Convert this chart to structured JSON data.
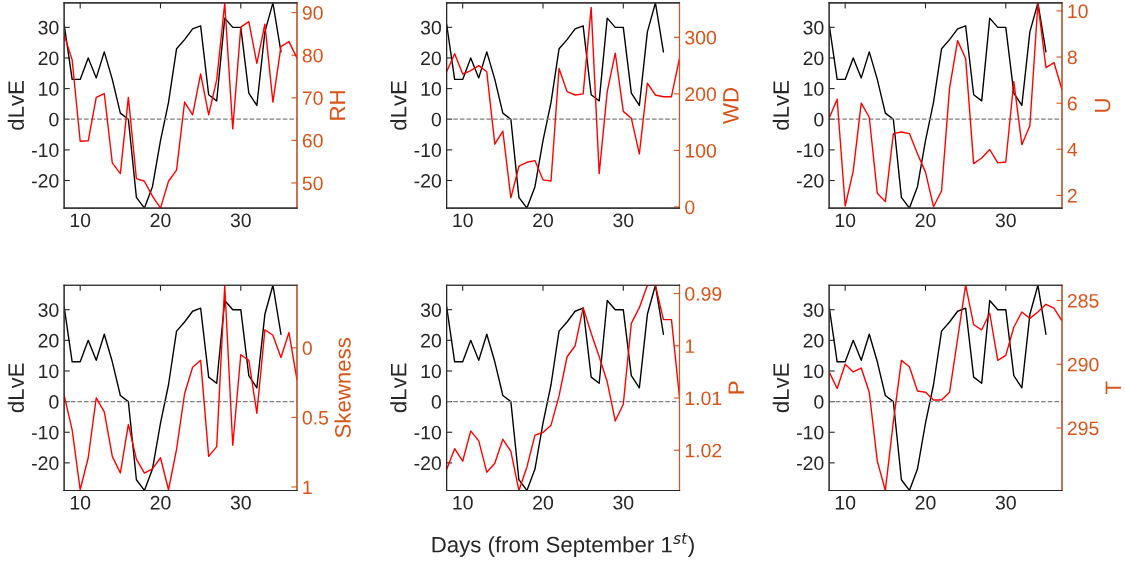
{
  "chart_data": [
    {
      "type": "line",
      "ylabel": "dLvE",
      "y2label": "RH",
      "xlim": [
        8,
        37
      ],
      "xticks": [
        10,
        20,
        30
      ],
      "ylim": [
        -29,
        38
      ],
      "yticks": [
        -20,
        -10,
        0,
        10,
        20,
        30
      ],
      "y2lim": [
        44.1,
        92.3
      ],
      "y2ticks": [
        50,
        60,
        70,
        80,
        90
      ],
      "ref_lines": [
        {
          "axis": "y",
          "value": 0,
          "color": "#808080",
          "line_style": "dashed"
        }
      ],
      "series": [
        {
          "color": "#000000",
          "x": [
            8,
            9,
            10,
            11,
            12,
            13,
            14,
            15,
            16,
            17,
            18,
            19,
            20,
            21,
            22,
            23,
            24,
            25,
            26,
            27,
            28,
            29,
            30,
            31,
            32,
            33,
            34,
            35
          ],
          "values": [
            31,
            13,
            13,
            20,
            13.5,
            22,
            13,
            2,
            0,
            -25.5,
            -29,
            -22,
            -7,
            5.5,
            23,
            26,
            29.5,
            30.5,
            8,
            6,
            33,
            30,
            30,
            8.5,
            4.5,
            28.5,
            38,
            22
          ]
        },
        {
          "color": "#ff0000",
          "axis": "y2",
          "x": [
            8,
            9,
            10,
            11,
            12,
            13,
            14,
            15,
            16,
            17,
            18,
            19,
            20,
            21,
            22,
            23,
            24,
            25,
            26,
            27,
            28,
            29,
            30,
            31,
            32,
            33,
            34,
            35,
            36,
            37
          ],
          "values": [
            84.8,
            78.9,
            59.8,
            59.9,
            70.1,
            71.0,
            54.7,
            52.2,
            70.1,
            51.0,
            50.4,
            46.9,
            44.1,
            50.4,
            53.0,
            69.0,
            66.0,
            75.6,
            66.0,
            74.2,
            92.2,
            62.7,
            86.6,
            87.9,
            78.1,
            87.3,
            69.0,
            82.0,
            83.2,
            79.3
          ]
        }
      ]
    },
    {
      "type": "line",
      "ylabel": "dLvE",
      "y2label": "WD",
      "xlim": [
        8,
        37
      ],
      "xticks": [
        10,
        20,
        30
      ],
      "ylim": [
        -29,
        38
      ],
      "yticks": [
        -20,
        -10,
        0,
        10,
        20,
        30
      ],
      "y2lim": [
        -2,
        361
      ],
      "y2ticks": [
        0,
        100,
        200,
        300
      ],
      "ref_lines": [
        {
          "axis": "y",
          "value": 0,
          "color": "#808080",
          "line_style": "dashed"
        }
      ],
      "series": [
        {
          "color": "#000000",
          "x": [
            8,
            9,
            10,
            11,
            12,
            13,
            14,
            15,
            16,
            17,
            18,
            19,
            20,
            21,
            22,
            23,
            24,
            25,
            26,
            27,
            28,
            29,
            30,
            31,
            32,
            33,
            34,
            35
          ],
          "values": [
            31,
            13,
            13,
            20,
            13.5,
            22,
            13,
            2,
            0,
            -25.5,
            -29,
            -22,
            -7,
            5.5,
            23,
            26,
            29.5,
            30.5,
            8,
            6,
            33,
            30,
            30,
            8.5,
            4.5,
            28.5,
            38,
            22
          ]
        },
        {
          "color": "#ff0000",
          "axis": "y2",
          "x": [
            8,
            9,
            10,
            11,
            12,
            13,
            14,
            15,
            16,
            17,
            18,
            19,
            20,
            21,
            22,
            23,
            24,
            25,
            26,
            27,
            28,
            29,
            30,
            31,
            32,
            33,
            34,
            35,
            36,
            37
          ],
          "values": [
            239,
            271,
            235,
            241,
            250,
            239,
            111,
            134,
            16,
            72,
            79,
            82,
            48,
            46,
            245,
            204,
            198,
            200,
            353,
            59,
            204,
            272,
            169,
            157,
            94,
            219,
            198,
            195,
            195,
            263
          ]
        }
      ]
    },
    {
      "type": "line",
      "ylabel": "dLvE",
      "y2label": "U",
      "xlim": [
        8,
        37
      ],
      "xticks": [
        10,
        20,
        30
      ],
      "ylim": [
        -29,
        38
      ],
      "yticks": [
        -20,
        -10,
        0,
        10,
        20,
        30
      ],
      "y2lim": [
        1.45,
        10.35
      ],
      "y2ticks": [
        2,
        4,
        6,
        8,
        10
      ],
      "ref_lines": [
        {
          "axis": "y",
          "value": 0,
          "color": "#808080",
          "line_style": "dashed"
        }
      ],
      "series": [
        {
          "color": "#000000",
          "x": [
            8,
            9,
            10,
            11,
            12,
            13,
            14,
            15,
            16,
            17,
            18,
            19,
            20,
            21,
            22,
            23,
            24,
            25,
            26,
            27,
            28,
            29,
            30,
            31,
            32,
            33,
            34,
            35
          ],
          "values": [
            31,
            13,
            13,
            20,
            13.5,
            22,
            13,
            2,
            0,
            -25.5,
            -29,
            -22,
            -7,
            5.5,
            23,
            26,
            29.5,
            30.5,
            8,
            6,
            33,
            30,
            30,
            8.5,
            4.5,
            28.5,
            38,
            22
          ]
        },
        {
          "color": "#ff0000",
          "axis": "y2",
          "x": [
            8,
            9,
            10,
            11,
            12,
            13,
            14,
            15,
            16,
            17,
            18,
            19,
            20,
            21,
            22,
            23,
            24,
            25,
            26,
            27,
            28,
            29,
            30,
            31,
            32,
            33,
            34,
            35,
            36,
            37
          ],
          "values": [
            5.35,
            6.17,
            1.54,
            3.05,
            6.0,
            5.39,
            2.09,
            1.73,
            4.68,
            4.75,
            4.68,
            3.81,
            3.01,
            1.51,
            2.19,
            6.65,
            8.71,
            7.94,
            3.38,
            3.62,
            3.99,
            3.41,
            3.45,
            6.94,
            4.2,
            5.02,
            10.32,
            7.54,
            7.76,
            6.58
          ]
        }
      ]
    },
    {
      "type": "line",
      "ylabel": "dLvE",
      "y2label": "Skewness",
      "xlim": [
        8,
        37
      ],
      "xticks": [
        10,
        20,
        30
      ],
      "ylim": [
        -29,
        38
      ],
      "yticks": [
        -20,
        -10,
        0,
        10,
        20,
        30
      ],
      "y2lim": [
        1.025,
        -0.45
      ],
      "y2ticks": [
        0,
        0.5,
        1
      ],
      "ref_lines": [
        {
          "axis": "y",
          "value": 0,
          "color": "#808080",
          "line_style": "dashed"
        }
      ],
      "series": [
        {
          "color": "#000000",
          "x": [
            8,
            9,
            10,
            11,
            12,
            13,
            14,
            15,
            16,
            17,
            18,
            19,
            20,
            21,
            22,
            23,
            24,
            25,
            26,
            27,
            28,
            29,
            30,
            31,
            32,
            33,
            34,
            35
          ],
          "values": [
            31,
            13,
            13,
            20,
            13.5,
            22,
            13,
            2,
            0,
            -25.5,
            -29,
            -22,
            -7,
            5.5,
            23,
            26,
            29.5,
            30.5,
            8,
            6,
            33,
            30,
            30,
            8.5,
            4.5,
            28.5,
            38,
            22
          ]
        },
        {
          "color": "#ff0000",
          "axis": "y2",
          "x": [
            8,
            9,
            10,
            11,
            12,
            13,
            14,
            15,
            16,
            17,
            18,
            19,
            20,
            21,
            22,
            23,
            24,
            25,
            26,
            27,
            28,
            29,
            30,
            31,
            32,
            33,
            34,
            35,
            36,
            37
          ],
          "values": [
            0.34,
            0.59,
            1.02,
            0.79,
            0.36,
            0.46,
            0.78,
            0.9,
            0.55,
            0.8,
            0.9,
            0.87,
            0.79,
            1.02,
            0.73,
            0.33,
            0.14,
            0.09,
            0.78,
            0.71,
            -0.45,
            0.7,
            0.05,
            0.09,
            0.47,
            -0.13,
            -0.09,
            0.07,
            -0.11,
            0.23
          ]
        }
      ]
    },
    {
      "type": "line",
      "ylabel": "dLvE",
      "y2label": "P",
      "xlabel": "Days (from September 1$^{st}$)",
      "xlim": [
        8,
        37
      ],
      "xticks": [
        10,
        20,
        30
      ],
      "ylim": [
        -29,
        38
      ],
      "yticks": [
        -20,
        -10,
        0,
        10,
        20,
        30
      ],
      "y2lim": [
        1.0277,
        0.9884
      ],
      "y2ticks": [
        0.99,
        1,
        1.01,
        1.02
      ],
      "ref_lines": [
        {
          "axis": "y",
          "value": 0,
          "color": "#808080",
          "line_style": "dashed"
        }
      ],
      "series": [
        {
          "color": "#000000",
          "x": [
            8,
            9,
            10,
            11,
            12,
            13,
            14,
            15,
            16,
            17,
            18,
            19,
            20,
            21,
            22,
            23,
            24,
            25,
            26,
            27,
            28,
            29,
            30,
            31,
            32,
            33,
            34,
            35
          ],
          "values": [
            31,
            13,
            13,
            20,
            13.5,
            22,
            13,
            2,
            0,
            -25.5,
            -29,
            -22,
            -7,
            5.5,
            23,
            26,
            29.5,
            30.5,
            8,
            6,
            33,
            30,
            30,
            8.5,
            4.5,
            28.5,
            38,
            22
          ]
        },
        {
          "color": "#ff0000",
          "axis": "y2",
          "x": [
            8,
            9,
            10,
            11,
            12,
            13,
            14,
            15,
            16,
            17,
            18,
            19,
            20,
            21,
            22,
            23,
            24,
            25,
            26,
            27,
            28,
            29,
            30,
            31,
            32,
            33,
            34,
            35,
            36,
            37
          ],
          "values": [
            1.0237,
            1.0197,
            1.0221,
            1.0163,
            1.0182,
            1.0242,
            1.0225,
            1.0179,
            1.0202,
            1.0277,
            1.0232,
            1.0171,
            1.0166,
            1.0152,
            1.0096,
            1.0021,
            1.0,
            0.9927,
            0.9976,
            1.0021,
            1.0069,
            1.0144,
            1.0112,
            0.9957,
            0.9927,
            0.9884,
            0.9884,
            0.995,
            0.995,
            1.0099
          ]
        }
      ]
    },
    {
      "type": "line",
      "ylabel": "dLvE",
      "y2label": "T",
      "xlim": [
        8,
        37
      ],
      "xticks": [
        10,
        20,
        30
      ],
      "ylim": [
        -29,
        38
      ],
      "yticks": [
        -20,
        -10,
        0,
        10,
        20,
        30
      ],
      "y2lim": [
        299.9,
        283.8
      ],
      "y2ticks": [
        285,
        290,
        295
      ],
      "ref_lines": [
        {
          "axis": "y",
          "value": 0,
          "color": "#808080",
          "line_style": "dashed"
        }
      ],
      "series": [
        {
          "color": "#000000",
          "x": [
            8,
            9,
            10,
            11,
            12,
            13,
            14,
            15,
            16,
            17,
            18,
            19,
            20,
            21,
            22,
            23,
            24,
            25,
            26,
            27,
            28,
            29,
            30,
            31,
            32,
            33,
            34,
            35
          ],
          "values": [
            31,
            13,
            13,
            20,
            13.5,
            22,
            13,
            2,
            0,
            -25.5,
            -29,
            -22,
            -7,
            5.5,
            23,
            26,
            29.5,
            30.5,
            8,
            6,
            33,
            30,
            30,
            8.5,
            4.5,
            28.5,
            38,
            22
          ]
        },
        {
          "color": "#ff0000",
          "axis": "y2",
          "x": [
            8,
            9,
            10,
            11,
            12,
            13,
            14,
            15,
            16,
            17,
            18,
            19,
            20,
            21,
            22,
            23,
            24,
            25,
            26,
            27,
            28,
            29,
            30,
            31,
            32,
            33,
            34,
            35,
            36,
            37
          ],
          "values": [
            290.6,
            291.9,
            290.0,
            290.6,
            290.3,
            292.2,
            297.6,
            299.9,
            294.5,
            289.7,
            290.2,
            292.1,
            292.2,
            292.8,
            292.8,
            292.2,
            288.0,
            283.8,
            286.9,
            287.3,
            286.0,
            289.7,
            289.3,
            287.1,
            285.9,
            286.4,
            285.9,
            285.3,
            285.6,
            286.6
          ]
        }
      ]
    }
  ]
}
